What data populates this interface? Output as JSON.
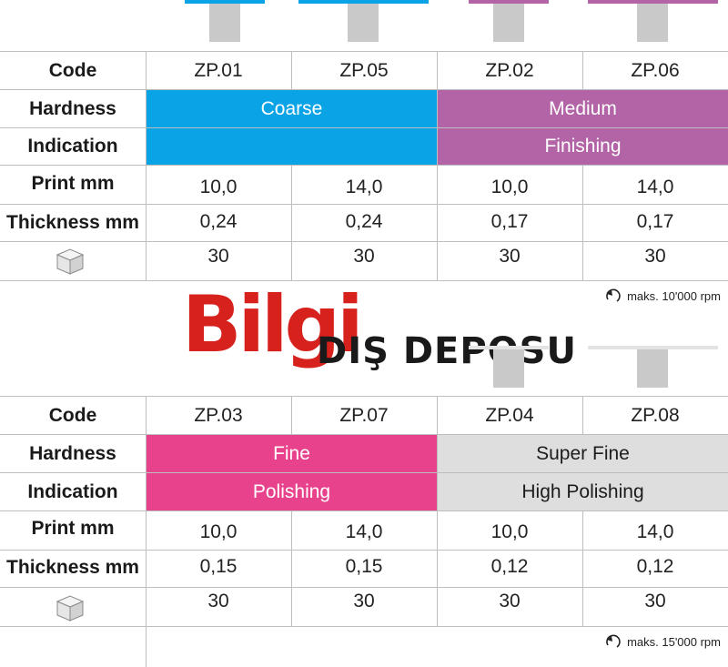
{
  "logo": {
    "brand": "Bilgi",
    "subtitle": "DIŞ DEPOSU"
  },
  "top_table": {
    "codes": [
      "ZP.01",
      "ZP.05",
      "ZP.02",
      "ZP.06"
    ],
    "labels": {
      "code": "Code",
      "hardness": "Hardness",
      "indication": "Indication",
      "print": "Print mm",
      "thickness": "Thickness mm"
    },
    "hardness_groups": [
      {
        "label": "Coarse",
        "color": "#0aa3e6"
      },
      {
        "label": "Medium",
        "color": "#b264a6"
      }
    ],
    "indication_groups": [
      {
        "label": "",
        "color": "#0aa3e6"
      },
      {
        "label": "Finishing",
        "color": "#b264a6"
      }
    ],
    "print": [
      "10,0",
      "14,0",
      "10,0",
      "14,0"
    ],
    "thickness": [
      "0,24",
      "0,24",
      "0,17",
      "0,17"
    ],
    "package": [
      "30",
      "30",
      "30",
      "30"
    ],
    "rpm": "maks. 10'000 rpm"
  },
  "bottom_table": {
    "codes": [
      "ZP.03",
      "ZP.07",
      "ZP.04",
      "ZP.08"
    ],
    "labels": {
      "code": "Code",
      "hardness": "Hardness",
      "indication": "Indication",
      "print": "Print mm",
      "thickness": "Thickness mm"
    },
    "hardness_groups": [
      {
        "label": "Fine",
        "color": "#e8428c"
      },
      {
        "label": "Super Fine",
        "color": "#dedede"
      }
    ],
    "indication_groups": [
      {
        "label": "Polishing",
        "color": "#e8428c"
      },
      {
        "label": "High Polishing",
        "color": "#dedede"
      }
    ],
    "print": [
      "10,0",
      "14,0",
      "10,0",
      "14,0"
    ],
    "thickness": [
      "0,15",
      "0,15",
      "0,12",
      "0,12"
    ],
    "package": [
      "30",
      "30",
      "30",
      "30"
    ],
    "rpm": "maks. 15'000 rpm"
  },
  "colors": {
    "coarse": "#0aa3e6",
    "medium": "#b264a6",
    "fine": "#e8428c",
    "super_fine": "#dedede",
    "logo_red": "#d6211c"
  },
  "icons": {
    "package": "package-box-icon",
    "rpm": "rotation-arrow-icon"
  }
}
